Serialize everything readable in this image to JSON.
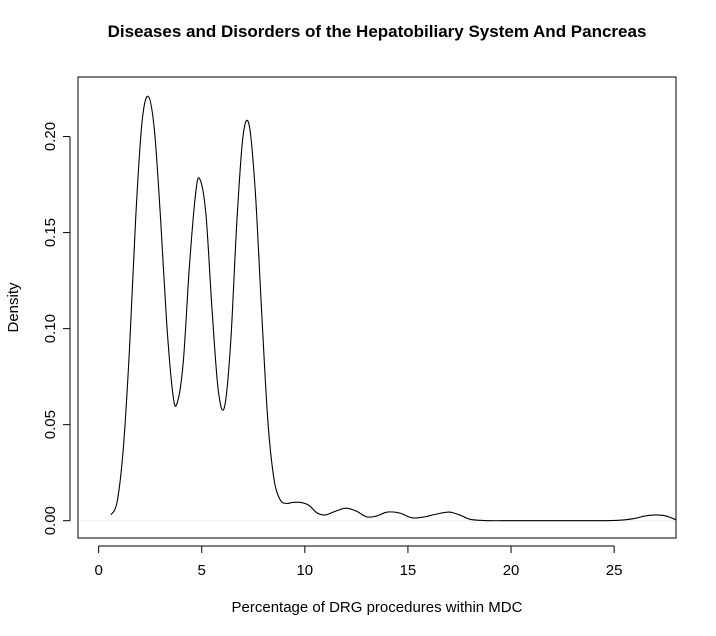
{
  "chart_data": {
    "type": "line",
    "title": "Diseases and Disorders of the Hepatobiliary System And Pancreas",
    "xlabel": "Percentage of DRG procedures within MDC",
    "ylabel": "Density",
    "xlim": [
      -1.0,
      28.0
    ],
    "ylim": [
      -0.009,
      0.231
    ],
    "xticks": [
      "0",
      "5",
      "10",
      "15",
      "20",
      "25"
    ],
    "yticks": [
      "0.00",
      "0.05",
      "0.10",
      "0.15",
      "0.20"
    ],
    "grid": false,
    "baseline": 0,
    "baseline_color": "#eeeeee",
    "line_color": "#000000",
    "series": [
      {
        "x": [
          0.6,
          0.9,
          1.2,
          1.5,
          1.8,
          2.1,
          2.4,
          2.7,
          3.0,
          3.3,
          3.6,
          3.8,
          4.1,
          4.4,
          4.7,
          4.9,
          5.2,
          5.5,
          5.8,
          6.1,
          6.4,
          6.7,
          7.0,
          7.3,
          7.6,
          7.9,
          8.2,
          8.5,
          8.8,
          9.1,
          9.4,
          9.8,
          10.2,
          10.6,
          11.0,
          11.5,
          12.0,
          12.5,
          13.0,
          13.5,
          14.0,
          14.6,
          15.2,
          15.8,
          16.4,
          17.0,
          17.5,
          18.0,
          18.5,
          19.0,
          20.0,
          22.0,
          24.0,
          25.2,
          26.0,
          26.5,
          27.0,
          27.5,
          28.0
        ],
        "y": [
          0.003,
          0.01,
          0.038,
          0.09,
          0.158,
          0.207,
          0.221,
          0.204,
          0.158,
          0.103,
          0.066,
          0.061,
          0.082,
          0.132,
          0.17,
          0.178,
          0.16,
          0.11,
          0.068,
          0.059,
          0.092,
          0.155,
          0.2,
          0.206,
          0.171,
          0.11,
          0.053,
          0.022,
          0.011,
          0.009,
          0.0095,
          0.0095,
          0.008,
          0.004,
          0.003,
          0.005,
          0.0065,
          0.005,
          0.002,
          0.0025,
          0.0045,
          0.004,
          0.0015,
          0.002,
          0.0035,
          0.0045,
          0.003,
          0.0008,
          0.0002,
          0.0,
          0.0,
          0.0,
          0.0,
          0.0002,
          0.0012,
          0.0025,
          0.003,
          0.0025,
          0.0005
        ]
      }
    ]
  }
}
